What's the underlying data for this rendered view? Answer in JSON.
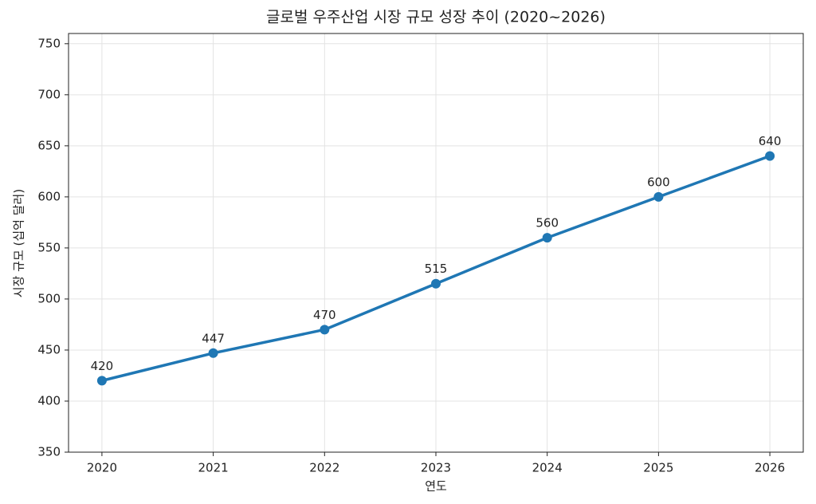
{
  "chart_data": {
    "type": "line",
    "title": "글로벌 우주산업 시장 규모 성장 추이 (2020~2026)",
    "x_label": "연도",
    "y_label": "시장 규모 (십억 달러)",
    "x": [
      2020,
      2021,
      2022,
      2023,
      2024,
      2025,
      2026
    ],
    "series": [
      {
        "color": "#1f77b4",
        "values": [
          420,
          447,
          470,
          515,
          560,
          600,
          640
        ]
      }
    ],
    "xlim": [
      2019.7,
      2026.3
    ],
    "xticks": [
      2020,
      2021,
      2022,
      2023,
      2024,
      2025,
      2026
    ],
    "ylim": [
      350,
      760
    ],
    "yticks": [
      350,
      400,
      450,
      500,
      550,
      600,
      650,
      700,
      750
    ],
    "grid": true,
    "data_labels": true
  }
}
